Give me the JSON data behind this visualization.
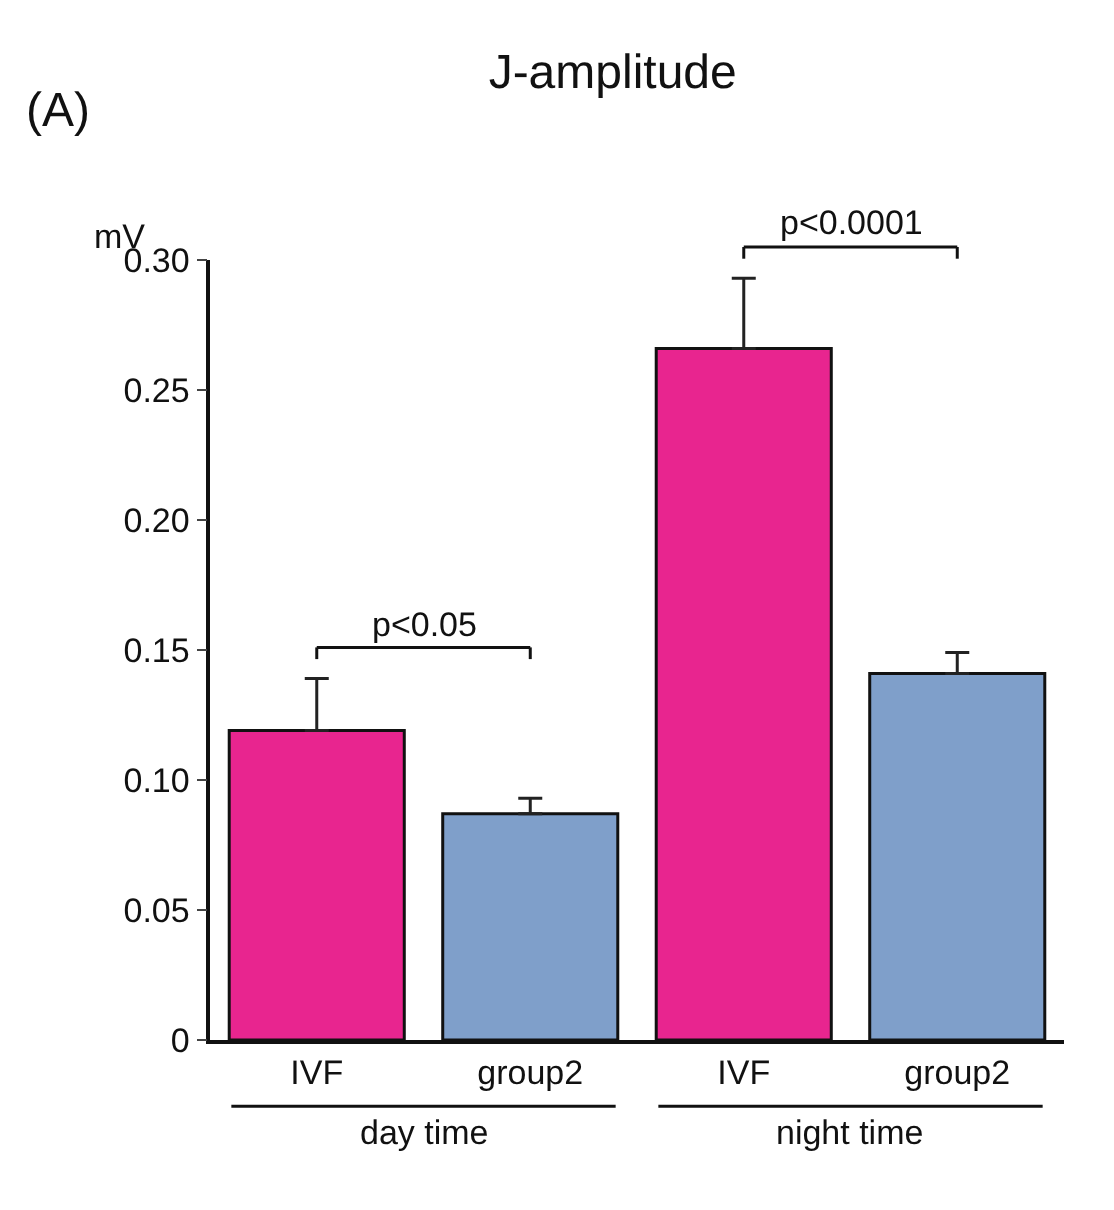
{
  "chart_data": {
    "type": "bar",
    "title": "J-amplitude",
    "ylabel": "mV",
    "categories": [
      "IVF",
      "group2",
      "IVF",
      "group2"
    ],
    "values": [
      0.119,
      0.087,
      0.266,
      0.141
    ],
    "colors": [
      "#e8258f",
      "#7f9fca",
      "#e8258f",
      "#7f9fca"
    ],
    "errors": [
      0.02,
      0.006,
      0.027,
      0.008
    ],
    "ylim": [
      0,
      0.3
    ],
    "yticks": [
      {
        "value": 0,
        "label": "0"
      },
      {
        "value": 0.05,
        "label": "0.05"
      },
      {
        "value": 0.1,
        "label": "0.10"
      },
      {
        "value": 0.15,
        "label": "0.15"
      },
      {
        "value": 0.2,
        "label": "0.20"
      },
      {
        "value": 0.25,
        "label": "0.25"
      },
      {
        "value": 0.3,
        "label": "0.30"
      }
    ],
    "legend": false,
    "annotations": [
      "(A)",
      "p<0.05",
      "p<0.0001",
      "day time",
      "night time"
    ]
  }
}
